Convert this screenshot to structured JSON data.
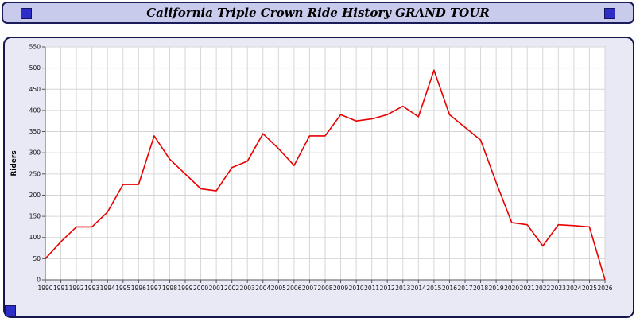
{
  "header": {
    "title": "California Triple Crown Ride History GRAND TOUR"
  },
  "colors": {
    "line": "#e80000",
    "grid": "#d6d6d6",
    "axis": "#555555",
    "plot_bg": "#ffffff",
    "plot_border": "#aaaaaa",
    "tick_text": "#111111",
    "frame_fill": "#e9e9f6",
    "titlebar_fill": "#c9cbec",
    "border": "#1b1b5a",
    "accent_square": "#2d2dc8"
  },
  "chart_data": {
    "type": "line",
    "title": "California Triple Crown Ride History GRAND TOUR",
    "xlabel": "",
    "ylabel": "Riders",
    "ylim": [
      0,
      550
    ],
    "y_ticks": [
      0,
      50,
      100,
      150,
      200,
      250,
      300,
      350,
      400,
      450,
      500,
      550
    ],
    "grid": true,
    "legend": "none",
    "categories": [
      "1990",
      "1991",
      "1992",
      "1993",
      "1994",
      "1995",
      "1996",
      "1997",
      "1998",
      "1999",
      "2000",
      "2001",
      "2002",
      "2003",
      "2004",
      "2005",
      "2006",
      "2007",
      "2008",
      "2009",
      "2010",
      "2011",
      "2012",
      "2013",
      "2014",
      "2015",
      "2016",
      "2017",
      "2018",
      "2019",
      "2020",
      "2021",
      "2022",
      "2023",
      "2024",
      "2025",
      "2026"
    ],
    "series": [
      {
        "name": "Riders",
        "values": [
          50,
          90,
          125,
          125,
          160,
          225,
          225,
          340,
          285,
          250,
          215,
          210,
          265,
          280,
          345,
          310,
          270,
          340,
          340,
          390,
          375,
          380,
          390,
          410,
          385,
          495,
          390,
          360,
          330,
          230,
          135,
          130,
          80,
          130,
          128,
          125,
          0
        ]
      }
    ]
  }
}
